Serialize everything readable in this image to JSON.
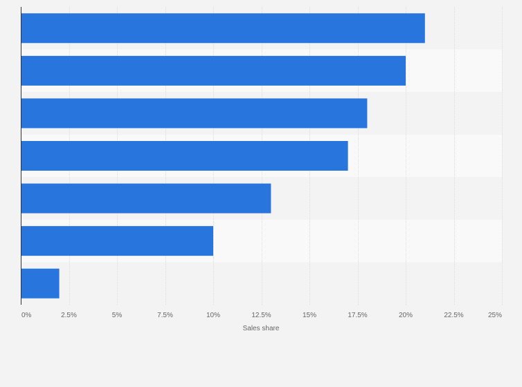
{
  "chart_data": {
    "type": "bar",
    "orientation": "horizontal",
    "categories": [
      "",
      "",
      "",
      "",
      "",
      "",
      ""
    ],
    "values": [
      21,
      20,
      18,
      17,
      13,
      10,
      2
    ],
    "xlabel": "Sales share",
    "ylabel": "",
    "xlim": [
      0,
      25
    ],
    "x_ticks": [
      0,
      2.5,
      5,
      7.5,
      10,
      12.5,
      15,
      17.5,
      20,
      22.5,
      25
    ],
    "x_tick_labels": [
      "0%",
      "2.5%",
      "5%",
      "7.5%",
      "10%",
      "12.5%",
      "15%",
      "17.5%",
      "20%",
      "22.5%",
      "25%"
    ],
    "grid": true,
    "legend": "none",
    "colors": {
      "bar": "#2876dd",
      "band_light": "#f9f9f9",
      "band_dark": "#f3f3f3",
      "grid": "#dcdcdc",
      "axis": "#333333",
      "text": "#666666"
    }
  }
}
